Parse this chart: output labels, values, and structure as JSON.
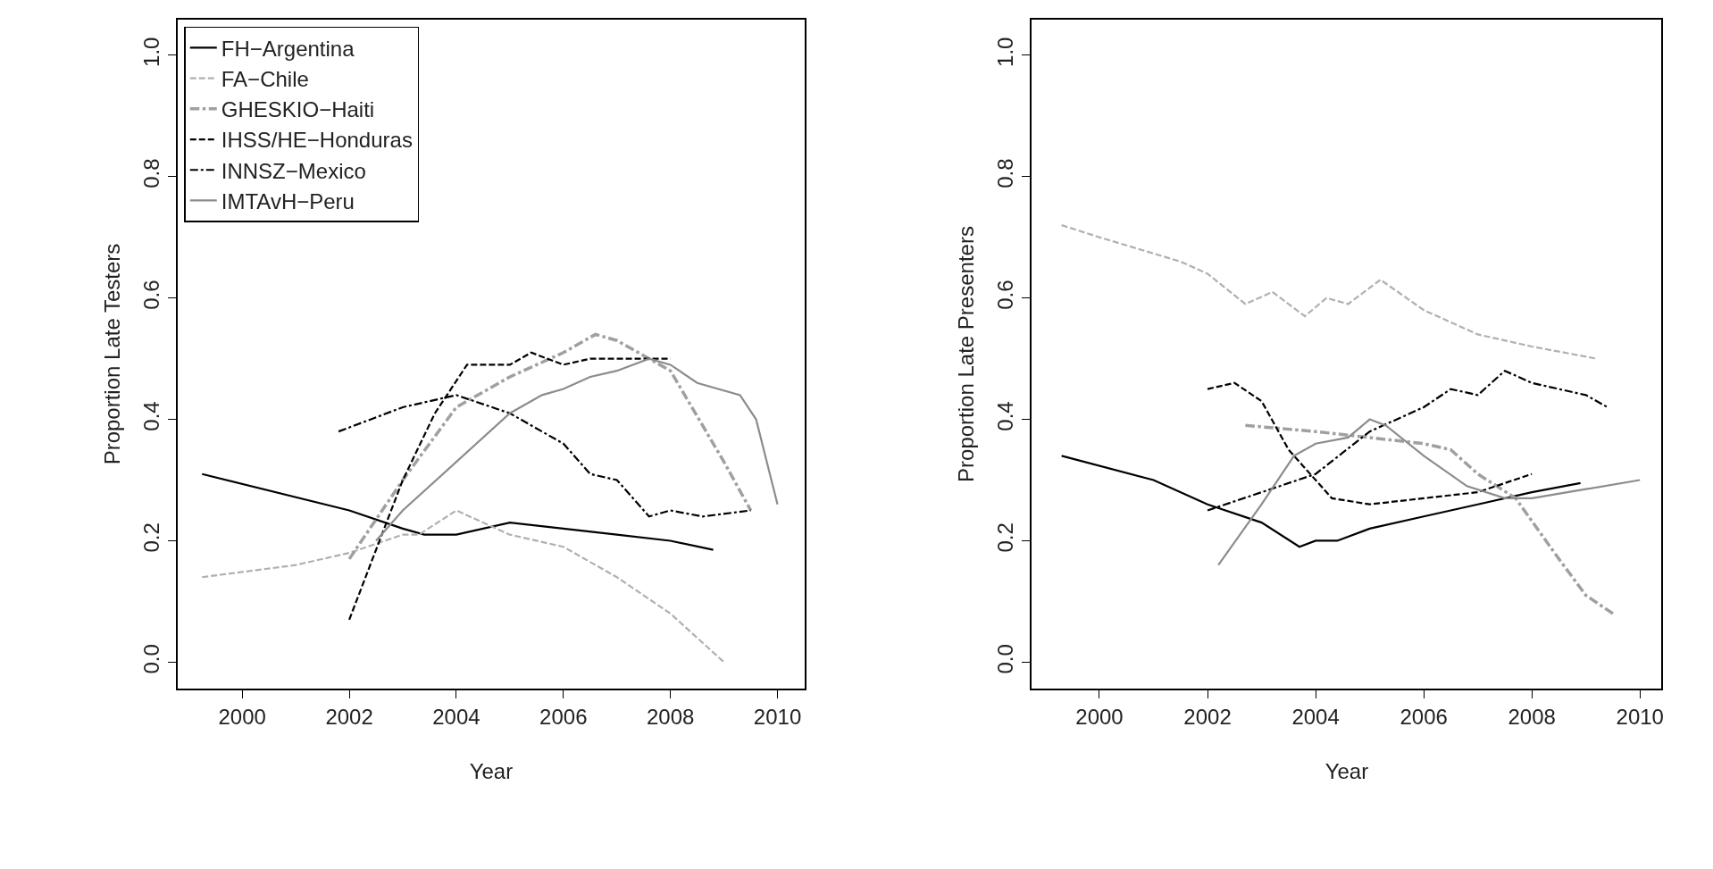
{
  "chart_data": [
    {
      "type": "line",
      "xlabel": "Year",
      "ylabel": "Proportion Late Testers",
      "xlim": [
        1998.8,
        2010.5
      ],
      "ylim": [
        -0.043,
        1.058
      ],
      "xticks": [
        2000,
        2002,
        2004,
        2006,
        2008,
        2010
      ],
      "yticks": [
        {
          "value": 0,
          "label": "0.0"
        },
        {
          "value": 0.2,
          "label": "0.2"
        },
        {
          "value": 0.4,
          "label": "0.4"
        },
        {
          "value": 0.6,
          "label": "0.6"
        },
        {
          "value": 0.8,
          "label": "0.8"
        },
        {
          "value": 1,
          "label": "1.0"
        }
      ],
      "legend": "top left",
      "marker": "none",
      "series": [
        {
          "name": "FH−Argentina",
          "color": "#000000",
          "line_style": "solid",
          "x": [
            1999.25,
            2002,
            2003,
            2003.4,
            2004,
            2005,
            2006,
            2007,
            2008,
            2008.8
          ],
          "values": [
            0.31,
            0.25,
            0.22,
            0.21,
            0.21,
            0.23,
            0.22,
            0.21,
            0.2,
            0.185
          ]
        },
        {
          "name": "FA−Chile",
          "color": "#b0b0b0",
          "line_style": "dashed",
          "x": [
            1999.25,
            2001,
            2002,
            2003,
            2003.3,
            2004,
            2004.5,
            2005,
            2006,
            2007,
            2008,
            2009
          ],
          "values": [
            0.14,
            0.16,
            0.18,
            0.21,
            0.21,
            0.25,
            0.23,
            0.21,
            0.19,
            0.14,
            0.08,
            0.0
          ]
        },
        {
          "name": "GHESKIO−Haiti",
          "color": "#a0a0a0",
          "line_style": "dashdot",
          "x": [
            2002,
            2003,
            2004,
            2005,
            2006,
            2006.6,
            2007,
            2008,
            2009,
            2009.5
          ],
          "values": [
            0.17,
            0.3,
            0.42,
            0.47,
            0.51,
            0.54,
            0.53,
            0.48,
            0.33,
            0.25
          ]
        },
        {
          "name": "IHSS/HE−Honduras",
          "color": "#000000",
          "line_style": "dashed",
          "x": [
            2002,
            2003,
            2003.6,
            2004.2,
            2005,
            2005.4,
            2006,
            2006.5,
            2008
          ],
          "values": [
            0.07,
            0.3,
            0.41,
            0.49,
            0.49,
            0.51,
            0.49,
            0.5,
            0.5
          ]
        },
        {
          "name": "INNSZ−Mexico",
          "color": "#000000",
          "line_style": "dashdot",
          "x": [
            2001.8,
            2003,
            2004,
            2005,
            2006,
            2006.5,
            2007,
            2007.6,
            2008,
            2008.6,
            2009.5
          ],
          "values": [
            0.38,
            0.42,
            0.44,
            0.41,
            0.36,
            0.31,
            0.3,
            0.24,
            0.25,
            0.24,
            0.25
          ]
        },
        {
          "name": "IMTAvH−Peru",
          "color": "#8c8c8c",
          "line_style": "solid",
          "x": [
            2002.5,
            2003,
            2004,
            2005,
            2005.6,
            2006,
            2006.5,
            2007,
            2007.6,
            2008,
            2008.5,
            2009.3,
            2009.6,
            2010
          ],
          "values": [
            0.2,
            0.25,
            0.33,
            0.41,
            0.44,
            0.45,
            0.47,
            0.48,
            0.5,
            0.49,
            0.46,
            0.44,
            0.4,
            0.26
          ]
        }
      ]
    },
    {
      "type": "line",
      "xlabel": "Year",
      "ylabel": "Proportion Late Presenters",
      "xlim": [
        1998.75,
        2010.4
      ],
      "ylim": [
        -0.043,
        1.058
      ],
      "xticks": [
        2000,
        2002,
        2004,
        2006,
        2008,
        2010
      ],
      "yticks": [
        {
          "value": 0,
          "label": "0.0"
        },
        {
          "value": 0.2,
          "label": "0.2"
        },
        {
          "value": 0.4,
          "label": "0.4"
        },
        {
          "value": 0.6,
          "label": "0.6"
        },
        {
          "value": 0.8,
          "label": "0.8"
        },
        {
          "value": 1,
          "label": "1.0"
        }
      ],
      "marker": "none",
      "series": [
        {
          "color": "#000000",
          "line_style": "solid",
          "x": [
            1999.3,
            2001,
            2002,
            2003,
            2003.7,
            2004,
            2004.4,
            2005,
            2006,
            2007,
            2008,
            2008.9
          ],
          "values": [
            0.34,
            0.3,
            0.26,
            0.23,
            0.19,
            0.2,
            0.2,
            0.22,
            0.24,
            0.26,
            0.28,
            0.295
          ]
        },
        {
          "color": "#b0b0b0",
          "line_style": "dashed",
          "x": [
            1999.3,
            2000,
            2001.5,
            2002,
            2002.7,
            2003.2,
            2003.8,
            2004.2,
            2004.6,
            2005.2,
            2006,
            2007,
            2008,
            2009.2
          ],
          "values": [
            0.72,
            0.7,
            0.66,
            0.64,
            0.59,
            0.61,
            0.57,
            0.6,
            0.59,
            0.63,
            0.58,
            0.54,
            0.52,
            0.5
          ]
        },
        {
          "color": "#a0a0a0",
          "line_style": "dashdot",
          "x": [
            2002.7,
            2004,
            2005,
            2006,
            2006.5,
            2007,
            2007.7,
            2008.5,
            2009,
            2009.5
          ],
          "values": [
            0.39,
            0.38,
            0.37,
            0.36,
            0.35,
            0.31,
            0.27,
            0.17,
            0.11,
            0.08
          ]
        },
        {
          "color": "#000000",
          "line_style": "dashed",
          "x": [
            2002,
            2002.5,
            2003,
            2003.5,
            2004,
            2004.3,
            2005,
            2006,
            2007,
            2008
          ],
          "values": [
            0.45,
            0.46,
            0.43,
            0.35,
            0.3,
            0.27,
            0.26,
            0.27,
            0.28,
            0.31
          ]
        },
        {
          "color": "#000000",
          "line_style": "dashdot",
          "x": [
            2002,
            2003,
            2004,
            2005,
            2006,
            2006.5,
            2007,
            2007.5,
            2008,
            2009,
            2009.4
          ],
          "values": [
            0.25,
            0.28,
            0.31,
            0.38,
            0.42,
            0.45,
            0.44,
            0.48,
            0.46,
            0.44,
            0.42
          ]
        },
        {
          "color": "#8c8c8c",
          "line_style": "solid",
          "x": [
            2002.2,
            2003,
            2003.6,
            2004,
            2004.6,
            2005,
            2005.3,
            2006,
            2006.8,
            2007.5,
            2008,
            2009,
            2010
          ],
          "values": [
            0.16,
            0.26,
            0.34,
            0.36,
            0.37,
            0.4,
            0.39,
            0.34,
            0.29,
            0.27,
            0.27,
            0.285,
            0.3
          ]
        }
      ]
    }
  ]
}
